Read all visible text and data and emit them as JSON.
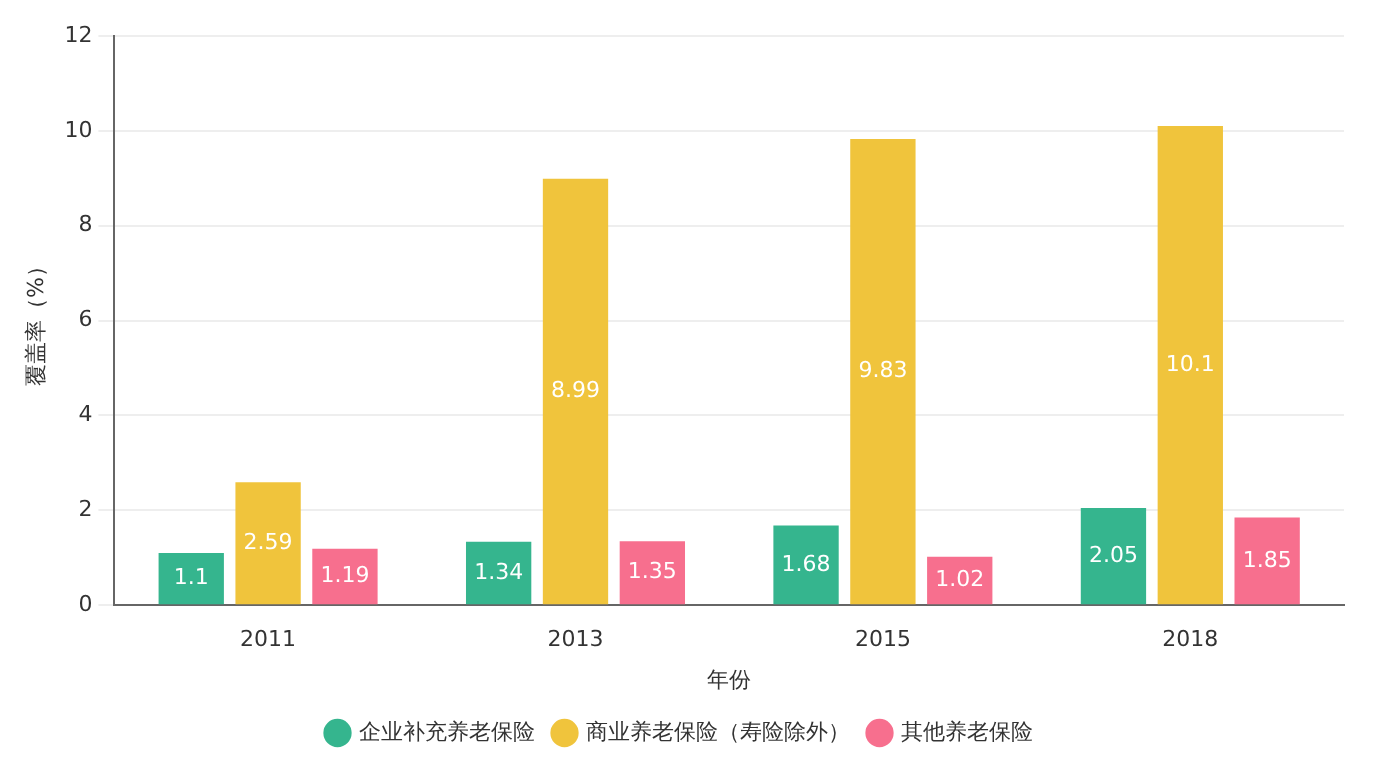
{
  "chart_data": {
    "type": "bar",
    "xlabel": "年份",
    "ylabel": "覆盖率（%）",
    "categories": [
      "2011",
      "2013",
      "2015",
      "2018"
    ],
    "series": [
      {
        "name": "企业补充养老保险",
        "color": "#35b58e",
        "values": [
          1.1,
          1.34,
          1.68,
          2.05
        ]
      },
      {
        "name": "商业养老保险（寿险除外）",
        "color": "#f0c43c",
        "values": [
          2.59,
          8.99,
          9.83,
          10.1
        ]
      },
      {
        "name": "其他养老保险",
        "color": "#f76f8e",
        "values": [
          1.19,
          1.35,
          1.02,
          1.85
        ]
      }
    ],
    "ylim": [
      0,
      12
    ],
    "yticks": [
      0,
      2,
      4,
      6,
      8,
      10,
      12
    ],
    "grid": "y",
    "legend": "bottom",
    "data_labels": true
  }
}
